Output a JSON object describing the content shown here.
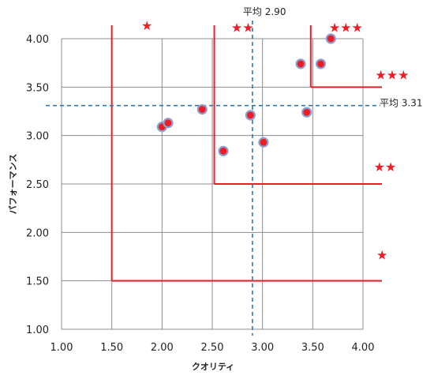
{
  "chart_data": {
    "type": "scatter",
    "title": "",
    "xlabel": "クオリティ",
    "ylabel": "パフォーマンス",
    "xlim": [
      1.0,
      4.0
    ],
    "ylim": [
      1.0,
      4.0
    ],
    "x_ticks": [
      "1.00",
      "1.50",
      "2.00",
      "2.50",
      "3.00",
      "3.50",
      "4.00"
    ],
    "y_ticks": [
      "1.00",
      "1.50",
      "2.00",
      "2.50",
      "3.00",
      "3.50",
      "4.00"
    ],
    "grid": true,
    "points": [
      {
        "x": 2.0,
        "y": 3.09
      },
      {
        "x": 2.06,
        "y": 3.13
      },
      {
        "x": 2.4,
        "y": 3.27
      },
      {
        "x": 2.61,
        "y": 2.84
      },
      {
        "x": 2.88,
        "y": 3.21
      },
      {
        "x": 3.01,
        "y": 2.93
      },
      {
        "x": 3.38,
        "y": 3.74
      },
      {
        "x": 3.44,
        "y": 3.24
      },
      {
        "x": 3.58,
        "y": 3.74
      },
      {
        "x": 3.68,
        "y": 4.0
      }
    ],
    "average_lines": [
      {
        "axis": "x",
        "value": 2.9,
        "label": "平均 2.90"
      },
      {
        "axis": "y",
        "value": 3.31,
        "label": "平均 3.31"
      }
    ],
    "rating_regions": [
      {
        "x_start": 1.5,
        "y_start": 1.5,
        "stars": "★"
      },
      {
        "x_start": 2.52,
        "y_start": 2.5,
        "stars": "★★"
      },
      {
        "x_start": 3.48,
        "y_start": 3.5,
        "stars": "★★★"
      }
    ],
    "star_labels": [
      {
        "text": "★",
        "x": 1.85,
        "y": 4.14
      },
      {
        "text": "★★",
        "x": 2.8,
        "y": 4.12
      },
      {
        "text": "★★★",
        "x": 3.83,
        "y": 4.12
      },
      {
        "text": "★★★",
        "x": 4.29,
        "y": 3.63
      },
      {
        "text": "★★",
        "x": 4.22,
        "y": 2.68
      },
      {
        "text": "★",
        "x": 4.19,
        "y": 1.77
      }
    ],
    "colors": {
      "point_fill": "#ee1c25",
      "point_stroke": "#8d9fcf",
      "region_line": "#ee1c25",
      "average_line": "#2e75b6",
      "grid": "#8c8c8c",
      "star": "#ee1c25"
    }
  }
}
